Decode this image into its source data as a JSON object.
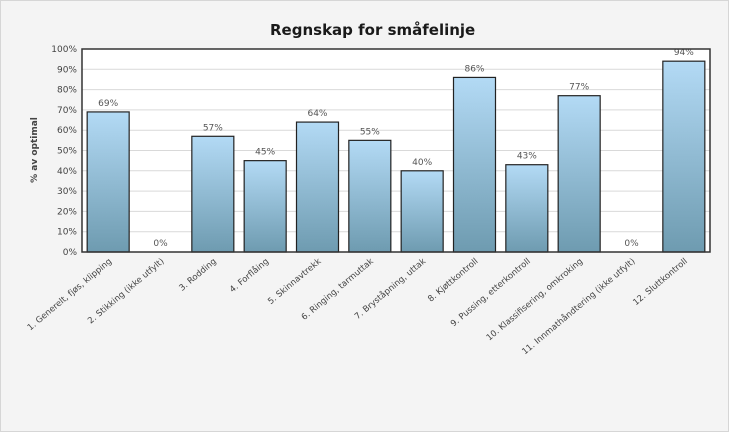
{
  "chart_data": {
    "type": "bar",
    "title": "Regnskap for småfelinje",
    "ylabel": "% av optimal",
    "xlabel": "",
    "ylim": [
      0,
      100
    ],
    "yticks": [
      0,
      10,
      20,
      30,
      40,
      50,
      60,
      70,
      80,
      90,
      100
    ],
    "ytick_suffix": "%",
    "grid": true,
    "categories": [
      "1. Generelt, fjøs, klipping",
      "2. Stikking (ikke utfylt)",
      "3. Rodding",
      "4. Forflåing",
      "5. Skinnavtrekk",
      "6. Ringing, tarmuttak",
      "7. Bryståpning, uttak",
      "8. Kjøttkontroll",
      "9. Pussing, etterkontroll",
      "10. Klassifisering, omkroking",
      "11. Innmathåndtering (ikke utfylt)",
      "12. Sluttkontroll"
    ],
    "values": [
      69,
      0,
      57,
      45,
      64,
      55,
      40,
      86,
      43,
      77,
      0,
      94
    ],
    "data_labels": [
      "69%",
      "0%",
      "57%",
      "45%",
      "64%",
      "55%",
      "40%",
      "86%",
      "43%",
      "77%",
      "0%",
      "94%"
    ],
    "colors": {
      "bar_top": "#b3daf5",
      "bar_bottom": "#6e9bb0",
      "bar_stroke": "#222222",
      "grid": "#d9d9d9",
      "axis": "#333333"
    }
  }
}
